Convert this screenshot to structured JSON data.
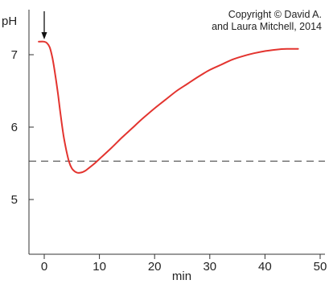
{
  "chart_data": {
    "type": "line",
    "title": "",
    "xlabel": "min",
    "ylabel": "pH",
    "xlim": [
      -2.5,
      50
    ],
    "ylim": [
      4.3,
      7.55
    ],
    "xticks": [
      0,
      10,
      20,
      30,
      40,
      50
    ],
    "xtick_labels": [
      "0",
      "10",
      "20",
      "30",
      "40",
      "50"
    ],
    "yticks": [
      5,
      6,
      7
    ],
    "ytick_labels": [
      "5",
      "6",
      "7"
    ],
    "grid": false,
    "legend": "none",
    "series": [
      {
        "color": "#e3342f",
        "x": [
          -1,
          0,
          0.5,
          1,
          1.5,
          2,
          2.5,
          3,
          3.5,
          4,
          4.5,
          5,
          5.5,
          6,
          6.5,
          7,
          7.5,
          8,
          9,
          10,
          12,
          14,
          16,
          18,
          20,
          22,
          24,
          26,
          28,
          30,
          32,
          34,
          36,
          38,
          40,
          42,
          44,
          46
        ],
        "y": [
          7.18,
          7.18,
          7.16,
          7.1,
          6.95,
          6.72,
          6.45,
          6.15,
          5.88,
          5.68,
          5.52,
          5.43,
          5.39,
          5.37,
          5.37,
          5.38,
          5.4,
          5.43,
          5.49,
          5.56,
          5.7,
          5.85,
          5.99,
          6.13,
          6.26,
          6.38,
          6.5,
          6.6,
          6.7,
          6.79,
          6.86,
          6.93,
          6.98,
          7.02,
          7.05,
          7.07,
          7.08,
          7.08
        ]
      }
    ],
    "reference_line": {
      "y": 5.53,
      "style": "dashed",
      "color": "#333333"
    },
    "marker": {
      "x": 0,
      "shape": "down-arrow",
      "color": "#111111"
    },
    "annotations": [
      "Copyright © David A.",
      "and Laura Mitchell, 2014"
    ]
  }
}
